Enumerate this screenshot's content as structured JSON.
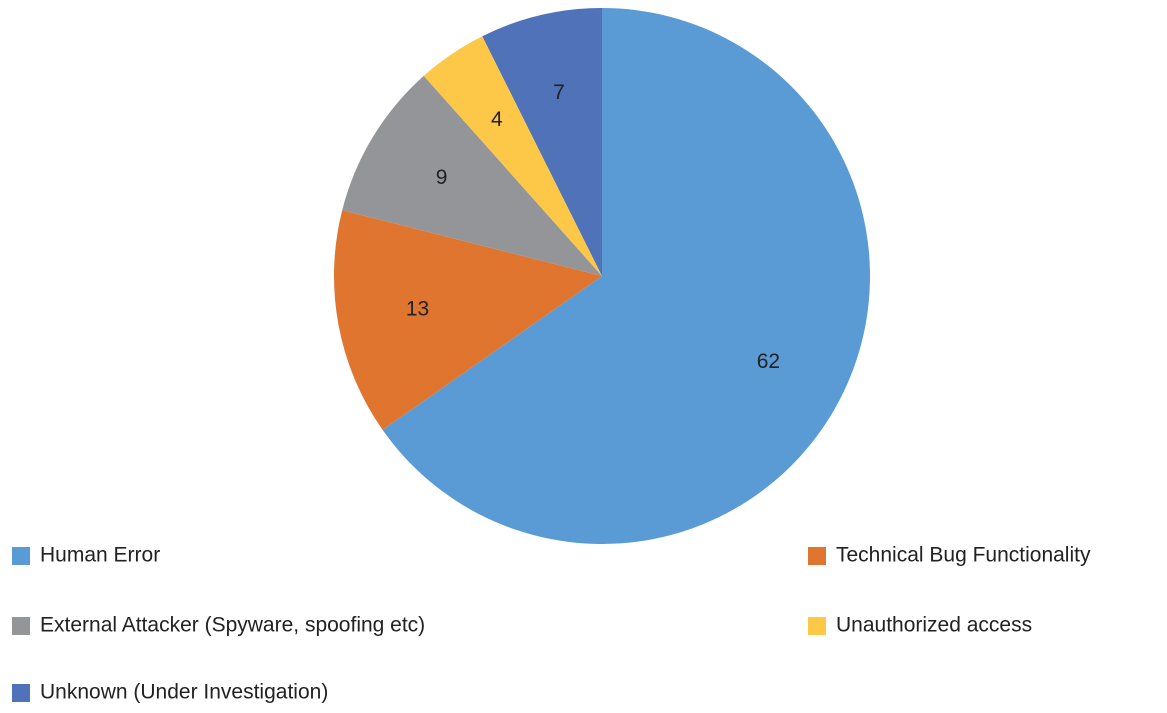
{
  "chart_data": {
    "type": "pie",
    "categories": [
      "Human Error",
      "Technical Bug Functionality",
      "External Attacker (Spyware, spoofing etc)",
      "Unauthorized access",
      "Unknown (Under Investigation)"
    ],
    "values": [
      62,
      13,
      9,
      4,
      7
    ],
    "colors": [
      "#5b9bd5",
      "#e07530",
      "#939598",
      "#fdc748",
      "#4f72b8"
    ],
    "legend": "bottom",
    "data_labels": true
  }
}
